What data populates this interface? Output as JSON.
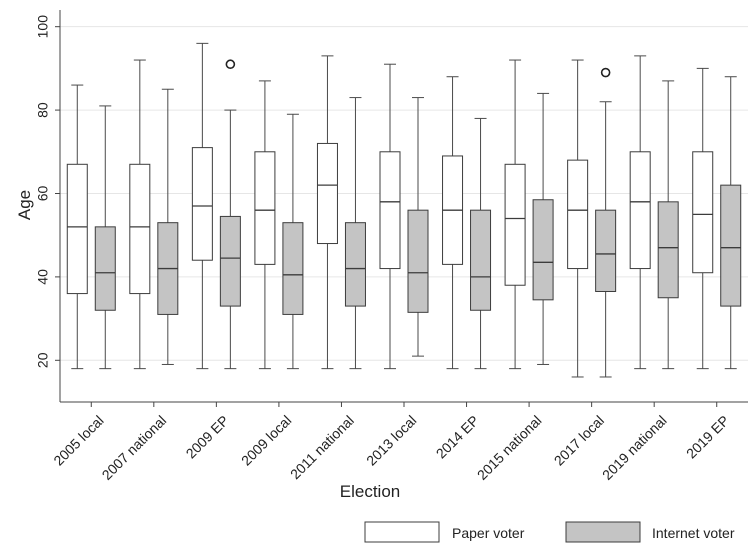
{
  "chart_data": {
    "type": "boxplot",
    "title": "",
    "xlabel": "Election",
    "ylabel": "Age",
    "ylim": [
      10,
      104
    ],
    "yticks": [
      20,
      40,
      60,
      80,
      100
    ],
    "grid": true,
    "legend_position": "bottom-right",
    "categories": [
      "2005 local",
      "2007 national",
      "2009 EP",
      "2009 local",
      "2011 national",
      "2013 local",
      "2014 EP",
      "2015 national",
      "2017 local",
      "2019 national",
      "2019 EP"
    ],
    "series": [
      {
        "name": "Paper voter",
        "color": "#ffffff",
        "boxes": [
          {
            "whisker_low": 18,
            "q1": 36,
            "median": 52,
            "q3": 67,
            "whisker_high": 86,
            "outliers": []
          },
          {
            "whisker_low": 18,
            "q1": 36,
            "median": 52,
            "q3": 67,
            "whisker_high": 92,
            "outliers": []
          },
          {
            "whisker_low": 18,
            "q1": 44,
            "median": 57,
            "q3": 71,
            "whisker_high": 96,
            "outliers": []
          },
          {
            "whisker_low": 18,
            "q1": 43,
            "median": 56,
            "q3": 70,
            "whisker_high": 87,
            "outliers": []
          },
          {
            "whisker_low": 18,
            "q1": 48,
            "median": 62,
            "q3": 72,
            "whisker_high": 93,
            "outliers": []
          },
          {
            "whisker_low": 18,
            "q1": 42,
            "median": 58,
            "q3": 70,
            "whisker_high": 91,
            "outliers": []
          },
          {
            "whisker_low": 18,
            "q1": 43,
            "median": 56,
            "q3": 69,
            "whisker_high": 88,
            "outliers": []
          },
          {
            "whisker_low": 18,
            "q1": 38,
            "median": 54,
            "q3": 67,
            "whisker_high": 92,
            "outliers": []
          },
          {
            "whisker_low": 16,
            "q1": 42,
            "median": 56,
            "q3": 68,
            "whisker_high": 92,
            "outliers": []
          },
          {
            "whisker_low": 18,
            "q1": 42,
            "median": 58,
            "q3": 70,
            "whisker_high": 93,
            "outliers": []
          },
          {
            "whisker_low": 18,
            "q1": 41,
            "median": 55,
            "q3": 70,
            "whisker_high": 90,
            "outliers": []
          }
        ]
      },
      {
        "name": "Internet voter",
        "color": "#c4c4c4",
        "boxes": [
          {
            "whisker_low": 18,
            "q1": 32,
            "median": 41,
            "q3": 52,
            "whisker_high": 81,
            "outliers": []
          },
          {
            "whisker_low": 19,
            "q1": 31,
            "median": 42,
            "q3": 53,
            "whisker_high": 85,
            "outliers": []
          },
          {
            "whisker_low": 18,
            "q1": 33,
            "median": 44.5,
            "q3": 54.5,
            "whisker_high": 80,
            "outliers": [
              91
            ]
          },
          {
            "whisker_low": 18,
            "q1": 31,
            "median": 40.5,
            "q3": 53,
            "whisker_high": 79,
            "outliers": []
          },
          {
            "whisker_low": 18,
            "q1": 33,
            "median": 42,
            "q3": 53,
            "whisker_high": 83,
            "outliers": []
          },
          {
            "whisker_low": 21,
            "q1": 31.5,
            "median": 41,
            "q3": 56,
            "whisker_high": 83,
            "outliers": []
          },
          {
            "whisker_low": 18,
            "q1": 32,
            "median": 40,
            "q3": 56,
            "whisker_high": 78,
            "outliers": []
          },
          {
            "whisker_low": 19,
            "q1": 34.5,
            "median": 43.5,
            "q3": 58.5,
            "whisker_high": 84,
            "outliers": []
          },
          {
            "whisker_low": 16,
            "q1": 36.5,
            "median": 45.5,
            "q3": 56,
            "whisker_high": 82,
            "outliers": [
              89
            ]
          },
          {
            "whisker_low": 18,
            "q1": 35,
            "median": 47,
            "q3": 58,
            "whisker_high": 87,
            "outliers": []
          },
          {
            "whisker_low": 18,
            "q1": 33,
            "median": 47,
            "q3": 62,
            "whisker_high": 88,
            "outliers": []
          }
        ]
      }
    ]
  }
}
